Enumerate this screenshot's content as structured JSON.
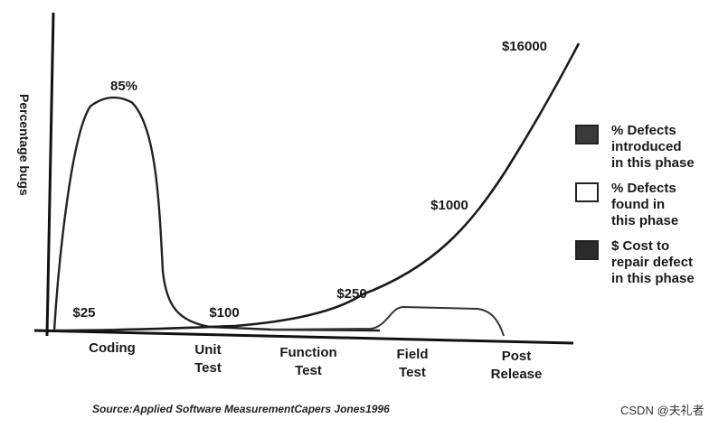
{
  "chart_data": {
    "type": "line",
    "ylabel": "Percentage bugs",
    "categories": [
      "Coding",
      "Unit\nTest",
      "Function\nTest",
      "Field\nTest",
      "Post\nRelease"
    ],
    "annotations": {
      "peak": "85%",
      "costs": [
        "$25",
        "$100",
        "$250",
        "$1000",
        "$16000"
      ]
    },
    "series": [
      {
        "name": "% Defects introduced in this phase",
        "values": [
          85,
          0,
          0,
          0,
          0
        ],
        "color": "#3a3a3a"
      },
      {
        "name": "% Defects found in this phase",
        "values": [
          0,
          0,
          0,
          5,
          0
        ],
        "color": "#ffffff"
      },
      {
        "name": "$ Cost to repair defect in this phase",
        "values": [
          25,
          100,
          250,
          1000,
          16000
        ],
        "color": "#2a2a2a"
      }
    ],
    "legend": {
      "position": "right",
      "items": [
        {
          "label": "% Defects\nintroduced\nin this phase",
          "color": "#3a3a3a",
          "icon": "dark-square"
        },
        {
          "label": "% Defects\nfound in\nthis phase",
          "color": "#ffffff",
          "icon": "white-square"
        },
        {
          "label": "$ Cost to\nrepair defect\nin this phase",
          "color": "#2a2a2a",
          "icon": "dark-square"
        }
      ]
    }
  },
  "source": "Source:Applied Software MeasurementCapers Jones1996",
  "watermark": "CSDN @夫礼者"
}
